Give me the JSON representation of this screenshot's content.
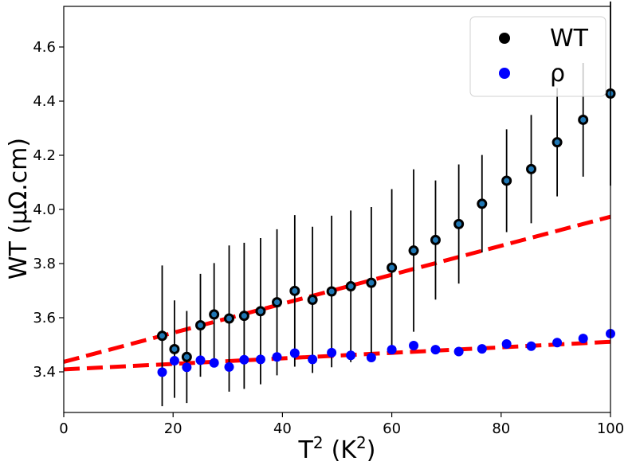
{
  "chart_data": {
    "type": "scatter",
    "xlabel_main": "T",
    "xlabel_sup1": "2",
    "xlabel_unit": "(K",
    "xlabel_sup2": "2",
    "xlabel_close": ")",
    "ylabel": "WT (μΩ.cm)",
    "xlim": [
      0,
      100
    ],
    "ylim": [
      3.25,
      4.75
    ],
    "xticks": [
      0,
      20,
      40,
      60,
      80,
      100
    ],
    "yticks": [
      3.4,
      3.6,
      3.8,
      4.0,
      4.2,
      4.4,
      4.6
    ],
    "xtick_labels": [
      "0",
      "20",
      "40",
      "60",
      "80",
      "100"
    ],
    "ytick_labels": [
      "3.4",
      "3.6",
      "3.8",
      "4.0",
      "4.2",
      "4.4",
      "4.6"
    ],
    "legend": {
      "placement": "top-right",
      "entries": [
        {
          "label": "WT",
          "color": "#000000"
        },
        {
          "label": "ρ",
          "color": "#0000ff"
        }
      ]
    },
    "series": [
      {
        "name": "WT",
        "color": "#000000",
        "inner_color": "#1f77b4",
        "x": [
          18,
          20.25,
          22.5,
          25,
          27.5,
          30.25,
          33,
          36,
          39,
          42.25,
          45.5,
          49,
          52.5,
          56.25,
          60,
          64,
          68,
          72.25,
          76.5,
          81,
          85.5,
          90.25,
          95,
          100
        ],
        "y": [
          3.533,
          3.484,
          3.455,
          3.572,
          3.612,
          3.597,
          3.607,
          3.624,
          3.657,
          3.699,
          3.666,
          3.697,
          3.716,
          3.729,
          3.785,
          3.848,
          3.887,
          3.946,
          4.021,
          4.106,
          4.149,
          4.248,
          4.331,
          4.428
        ],
        "yerr": [
          0.26,
          0.18,
          0.17,
          0.19,
          0.19,
          0.27,
          0.27,
          0.27,
          0.27,
          0.28,
          0.27,
          0.28,
          0.28,
          0.28,
          0.29,
          0.3,
          0.22,
          0.22,
          0.18,
          0.19,
          0.2,
          0.2,
          0.21,
          0.34
        ]
      },
      {
        "name": "ρ",
        "color": "#0000ff",
        "x": [
          18,
          20.25,
          22.5,
          25,
          27.5,
          30.25,
          33,
          36,
          39,
          42.25,
          45.5,
          49,
          52.5,
          56.25,
          60,
          64,
          68,
          72.25,
          76.5,
          81,
          85.5,
          90.25,
          95,
          100
        ],
        "y": [
          3.399,
          3.441,
          3.417,
          3.443,
          3.433,
          3.418,
          3.445,
          3.446,
          3.455,
          3.469,
          3.446,
          3.471,
          3.461,
          3.453,
          3.482,
          3.497,
          3.482,
          3.475,
          3.485,
          3.503,
          3.495,
          3.508,
          3.523,
          3.541
        ]
      }
    ],
    "fits": [
      {
        "name": "WT fit",
        "color": "#ff0000",
        "style": "dashed",
        "x": [
          0,
          100
        ],
        "y": [
          3.437,
          3.973
        ]
      },
      {
        "name": "ρ fit",
        "color": "#ff0000",
        "style": "dashed",
        "x": [
          0,
          100
        ],
        "y": [
          3.409,
          3.511
        ]
      }
    ]
  }
}
